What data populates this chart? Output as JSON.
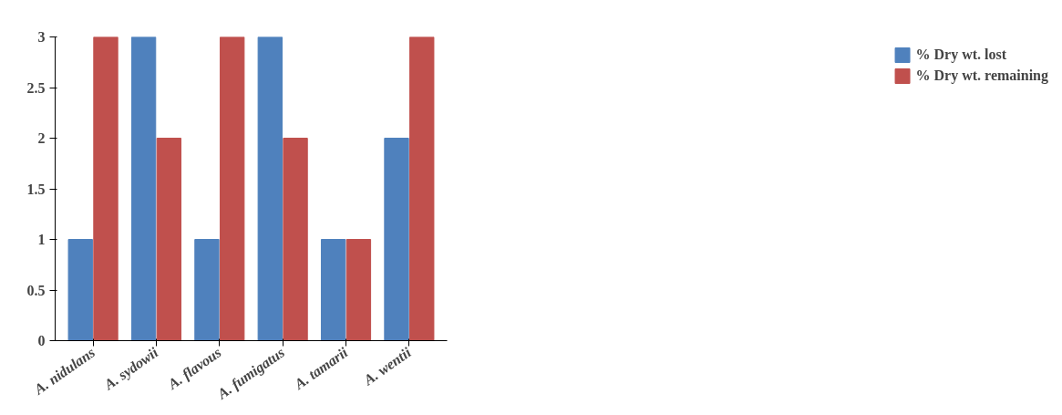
{
  "chart_data": {
    "type": "bar",
    "categories": [
      "A. nidulans",
      "A. sydowii",
      "A. flavous",
      "A. fumigatus",
      "A. tamarii",
      "A. wentii"
    ],
    "series": [
      {
        "name": "% Dry wt. lost",
        "color": "#4f81bd",
        "values": [
          1,
          3,
          1,
          3,
          1,
          2
        ]
      },
      {
        "name": "% Dry wt. remaining",
        "color": "#c0504d",
        "values": [
          3,
          2,
          3,
          2,
          1,
          3
        ]
      }
    ],
    "ylim": [
      0,
      3
    ],
    "yticks": [
      0,
      0.5,
      1,
      1.5,
      2,
      2.5,
      3
    ],
    "grid": false,
    "legend": "right"
  }
}
